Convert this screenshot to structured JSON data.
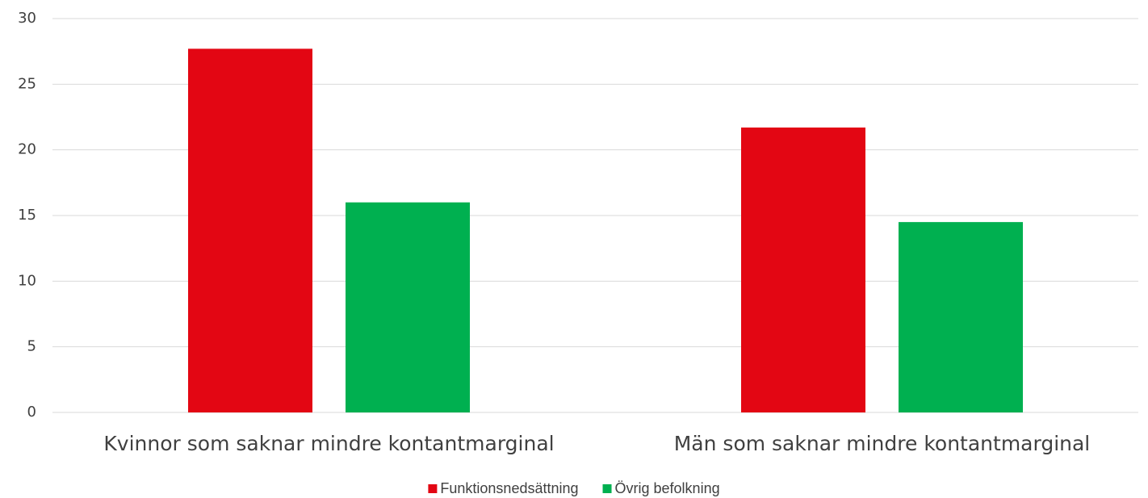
{
  "chart_data": {
    "type": "bar",
    "categories": [
      "Kvinnor som saknar mindre kontantmarginal",
      "Män som saknar mindre kontantmarginal"
    ],
    "series": [
      {
        "name": "Funktionsnedsättning",
        "color": "#e30613",
        "values": [
          27.7,
          21.7
        ]
      },
      {
        "name": "Övrig befolkning",
        "color": "#00b050",
        "values": [
          16.0,
          14.5
        ]
      }
    ],
    "ylim": [
      0,
      30
    ],
    "yticks": [
      0,
      5,
      10,
      15,
      20,
      25,
      30
    ],
    "grid": true,
    "legend": "bottom"
  }
}
